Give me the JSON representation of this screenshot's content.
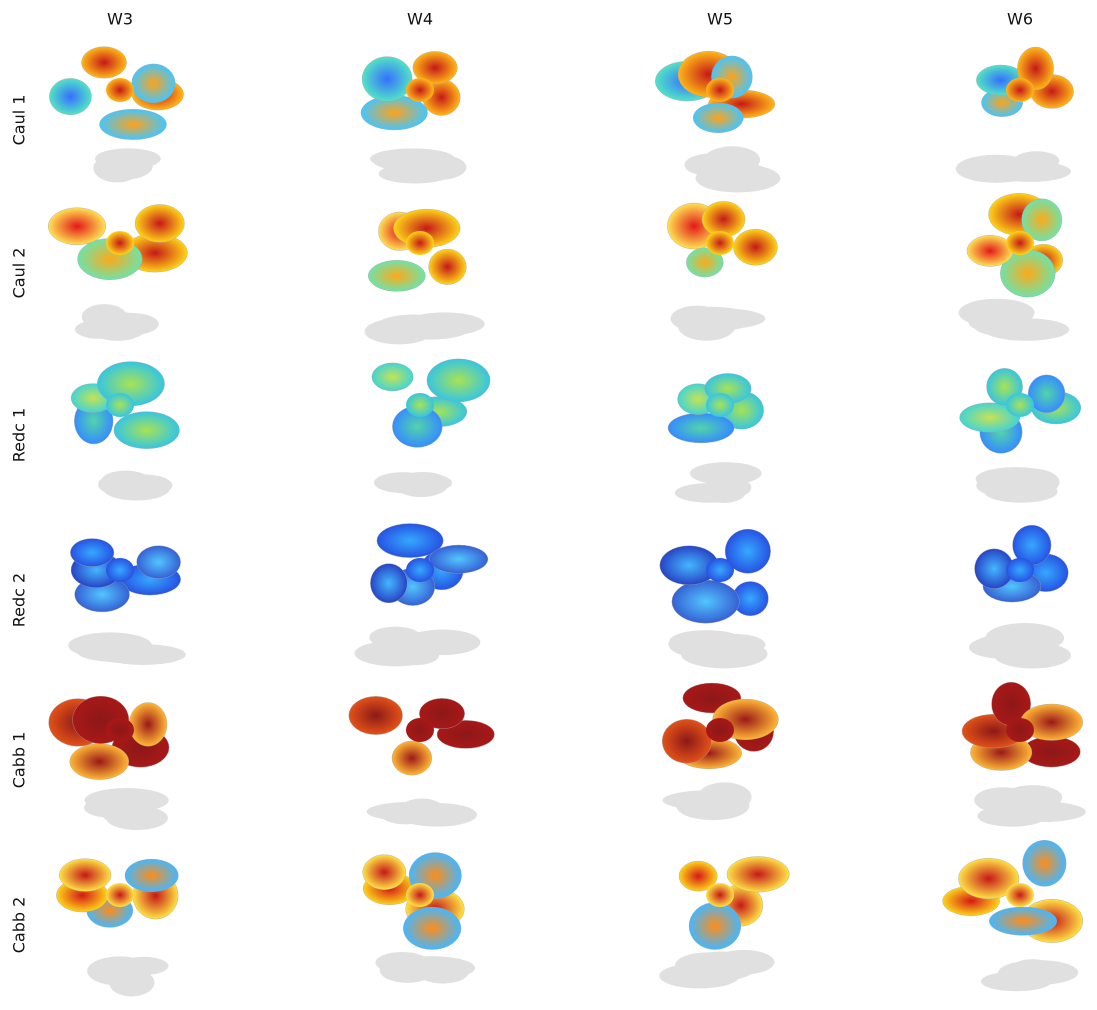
{
  "columns": [
    "W3",
    "W4",
    "W5",
    "W6"
  ],
  "rows": [
    "Caul 1",
    "Caul 2",
    "Redc 1",
    "Redc 2",
    "Cabb 1",
    "Cabb 2"
  ]
}
